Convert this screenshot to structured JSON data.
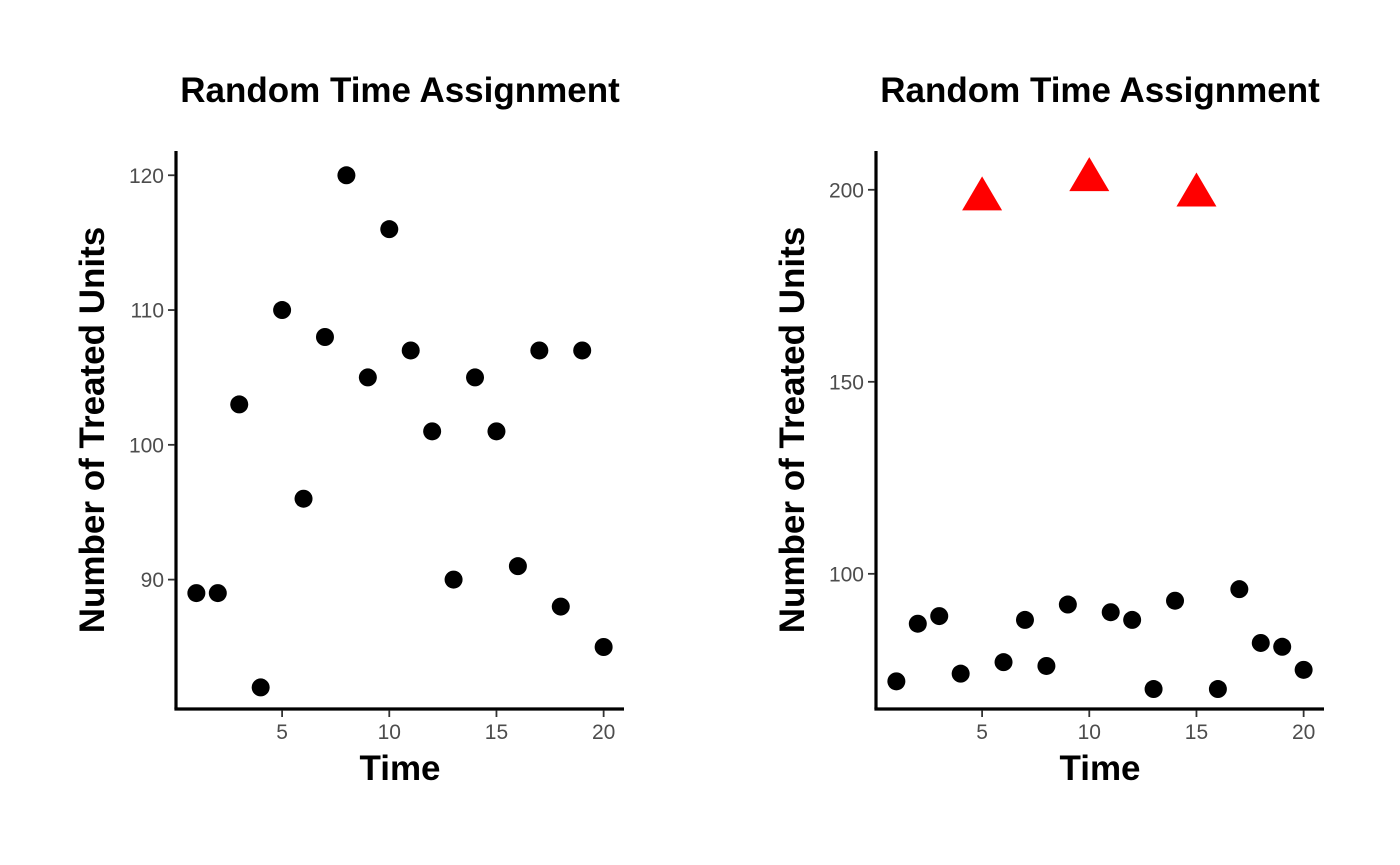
{
  "colors": {
    "points": "#000000",
    "highlight": "#ff0000",
    "tick_labels": "#4d4d4d",
    "background": "#ffffff"
  },
  "chart_data": [
    {
      "type": "scatter",
      "title": "Random Time Assignment",
      "xlabel": "Time",
      "ylabel": "Number of Treated Units",
      "xlim": [
        0.05,
        20.95
      ],
      "ylim": [
        80.4,
        121.8
      ],
      "xticks": [
        5,
        10,
        15,
        20
      ],
      "yticks": [
        90,
        100,
        110,
        120
      ],
      "grid": false,
      "legend": "none",
      "series": [
        {
          "marker": "circle",
          "color": "#000000",
          "x": [
            1,
            2,
            3,
            4,
            5,
            6,
            7,
            8,
            9,
            10,
            11,
            12,
            13,
            14,
            15,
            16,
            17,
            18,
            19,
            20
          ],
          "y": [
            89,
            89,
            103,
            82,
            110,
            96,
            108,
            120,
            105,
            116,
            107,
            101,
            90,
            105,
            101,
            91,
            107,
            88,
            107,
            85
          ]
        }
      ]
    },
    {
      "type": "scatter",
      "title": "Random Time Assignment",
      "xlabel": "Time",
      "ylabel": "Number of Treated Units",
      "xlim": [
        0.05,
        20.95
      ],
      "ylim": [
        64.8,
        210.1
      ],
      "xticks": [
        5,
        10,
        15,
        20
      ],
      "yticks": [
        100,
        150,
        200
      ],
      "grid": false,
      "legend": "none",
      "series": [
        {
          "marker": "circle",
          "color": "#000000",
          "x": [
            1,
            2,
            3,
            4,
            6,
            7,
            8,
            9,
            11,
            12,
            13,
            14,
            16,
            17,
            18,
            19,
            20
          ],
          "y": [
            72,
            87,
            89,
            74,
            77,
            88,
            76,
            92,
            90,
            88,
            70,
            93,
            70,
            96,
            82,
            81,
            75
          ]
        },
        {
          "marker": "triangle",
          "color": "#ff0000",
          "x": [
            5,
            10,
            15
          ],
          "y": [
            198,
            203,
            199
          ]
        }
      ]
    }
  ]
}
